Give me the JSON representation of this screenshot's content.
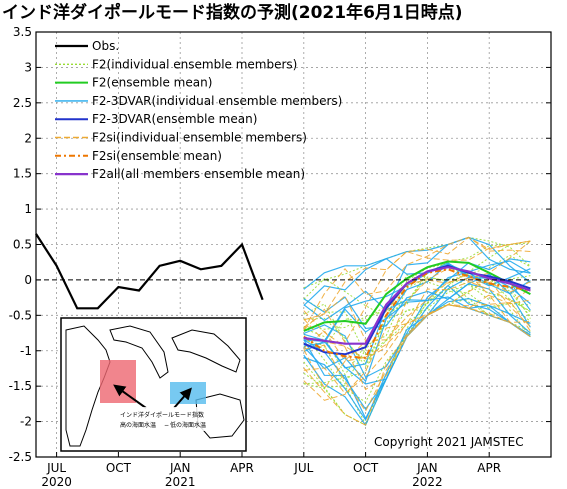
{
  "chart_data": {
    "type": "line",
    "title": "インド洋ダイポールモード指数の予測(2021年6月1日時点)",
    "ylim": [
      -2.5,
      3.5
    ],
    "yticks": [
      "3.5",
      "3",
      "2.5",
      "2",
      "1.5",
      "1",
      "0.5",
      "0",
      "-0.5",
      "-1",
      "-1.5",
      "-2",
      "-2.5"
    ],
    "xlim": [
      0,
      25
    ],
    "xticks": [
      {
        "x": 1,
        "label": "JUL",
        "year": "2020"
      },
      {
        "x": 4,
        "label": "OCT",
        "year": ""
      },
      {
        "x": 7,
        "label": "JAN",
        "year": "2021"
      },
      {
        "x": 10,
        "label": "APR",
        "year": ""
      },
      {
        "x": 13,
        "label": "JUL",
        "year": ""
      },
      {
        "x": 16,
        "label": "OCT",
        "year": ""
      },
      {
        "x": 19,
        "label": "JAN",
        "year": "2022"
      },
      {
        "x": 22,
        "label": "APR",
        "year": ""
      }
    ],
    "grid": true,
    "legend_position": "top-left",
    "copyright": "Copyright 2021 JAMSTEC",
    "series": [
      {
        "name": "Obs.",
        "color": "#000000",
        "dash": "",
        "width": 2.2,
        "x": [
          0,
          1,
          2,
          3,
          4,
          5,
          6,
          7,
          8,
          9,
          10,
          11
        ],
        "values": [
          0.65,
          0.2,
          -0.4,
          -0.4,
          -0.1,
          -0.15,
          0.2,
          0.27,
          0.15,
          0.2,
          0.5,
          -0.28
        ]
      },
      {
        "name": "F2(individual ensemble members)",
        "color": "#99dd33",
        "dash": "2,2",
        "width": 1,
        "x": [],
        "values": []
      },
      {
        "name": "F2(ensemble mean)",
        "color": "#22cc22",
        "dash": "",
        "width": 2,
        "x": [
          13,
          14,
          15,
          16,
          17,
          18,
          19,
          20,
          21,
          22,
          23,
          24
        ],
        "values": [
          -0.72,
          -0.6,
          -0.58,
          -0.62,
          -0.2,
          0.02,
          0.18,
          0.26,
          0.24,
          0.1,
          -0.05,
          -0.2
        ]
      },
      {
        "name": "F2-3DVAR(individual ensemble members)",
        "color": "#22aaee",
        "dash": "",
        "width": 1.2,
        "x": [],
        "values": []
      },
      {
        "name": "F2-3DVAR(ensemble mean)",
        "color": "#2233cc",
        "dash": "",
        "width": 2,
        "x": [
          13,
          14,
          15,
          16,
          17,
          18,
          19,
          20,
          21,
          22,
          23,
          24
        ],
        "values": [
          -0.9,
          -1.02,
          -1.05,
          -0.95,
          -0.4,
          -0.05,
          0.12,
          0.2,
          0.1,
          0.05,
          -0.02,
          -0.12
        ]
      },
      {
        "name": "F2si(individual ensemble members)",
        "color": "#eeaa33",
        "dash": "6,3",
        "width": 1,
        "x": [],
        "values": []
      },
      {
        "name": "F2si(ensemble mean)",
        "color": "#ee7700",
        "dash": "6,3,2,3",
        "width": 2,
        "x": [
          13,
          14,
          15,
          16,
          17,
          18,
          19,
          20,
          21,
          22,
          23,
          24
        ],
        "values": [
          -0.8,
          -1.0,
          -1.08,
          -1.1,
          -0.5,
          -0.1,
          0.1,
          0.15,
          0.05,
          -0.05,
          -0.1,
          -0.15
        ]
      },
      {
        "name": "F2all(all members ensemble mean)",
        "color": "#8833cc",
        "dash": "",
        "width": 2.2,
        "x": [
          13,
          14,
          15,
          16,
          17,
          18,
          19,
          20,
          21,
          22,
          23,
          24
        ],
        "values": [
          -0.82,
          -0.86,
          -0.9,
          -0.9,
          -0.35,
          -0.05,
          0.12,
          0.18,
          0.12,
          0.02,
          -0.05,
          -0.15
        ]
      }
    ],
    "ensemble_spread": {
      "x": [
        13,
        14,
        15,
        16,
        17,
        18,
        19,
        20,
        21,
        22,
        23,
        24
      ],
      "upper": [
        -0.1,
        0.1,
        0.2,
        0.2,
        0.3,
        0.4,
        0.45,
        0.5,
        0.6,
        0.55,
        0.5,
        0.55
      ],
      "lower": [
        -1.5,
        -1.7,
        -1.9,
        -2.05,
        -1.4,
        -0.8,
        -0.5,
        -0.35,
        -0.4,
        -0.5,
        -0.6,
        -0.8
      ]
    }
  },
  "inset": {
    "caption": "インド洋ダイポールモード指数",
    "warm_label": "高の海面水温",
    "cool_label": "低の海面水温",
    "minus_sign": "−",
    "warm_color": "#ee6670",
    "cool_color": "#55bbee"
  }
}
